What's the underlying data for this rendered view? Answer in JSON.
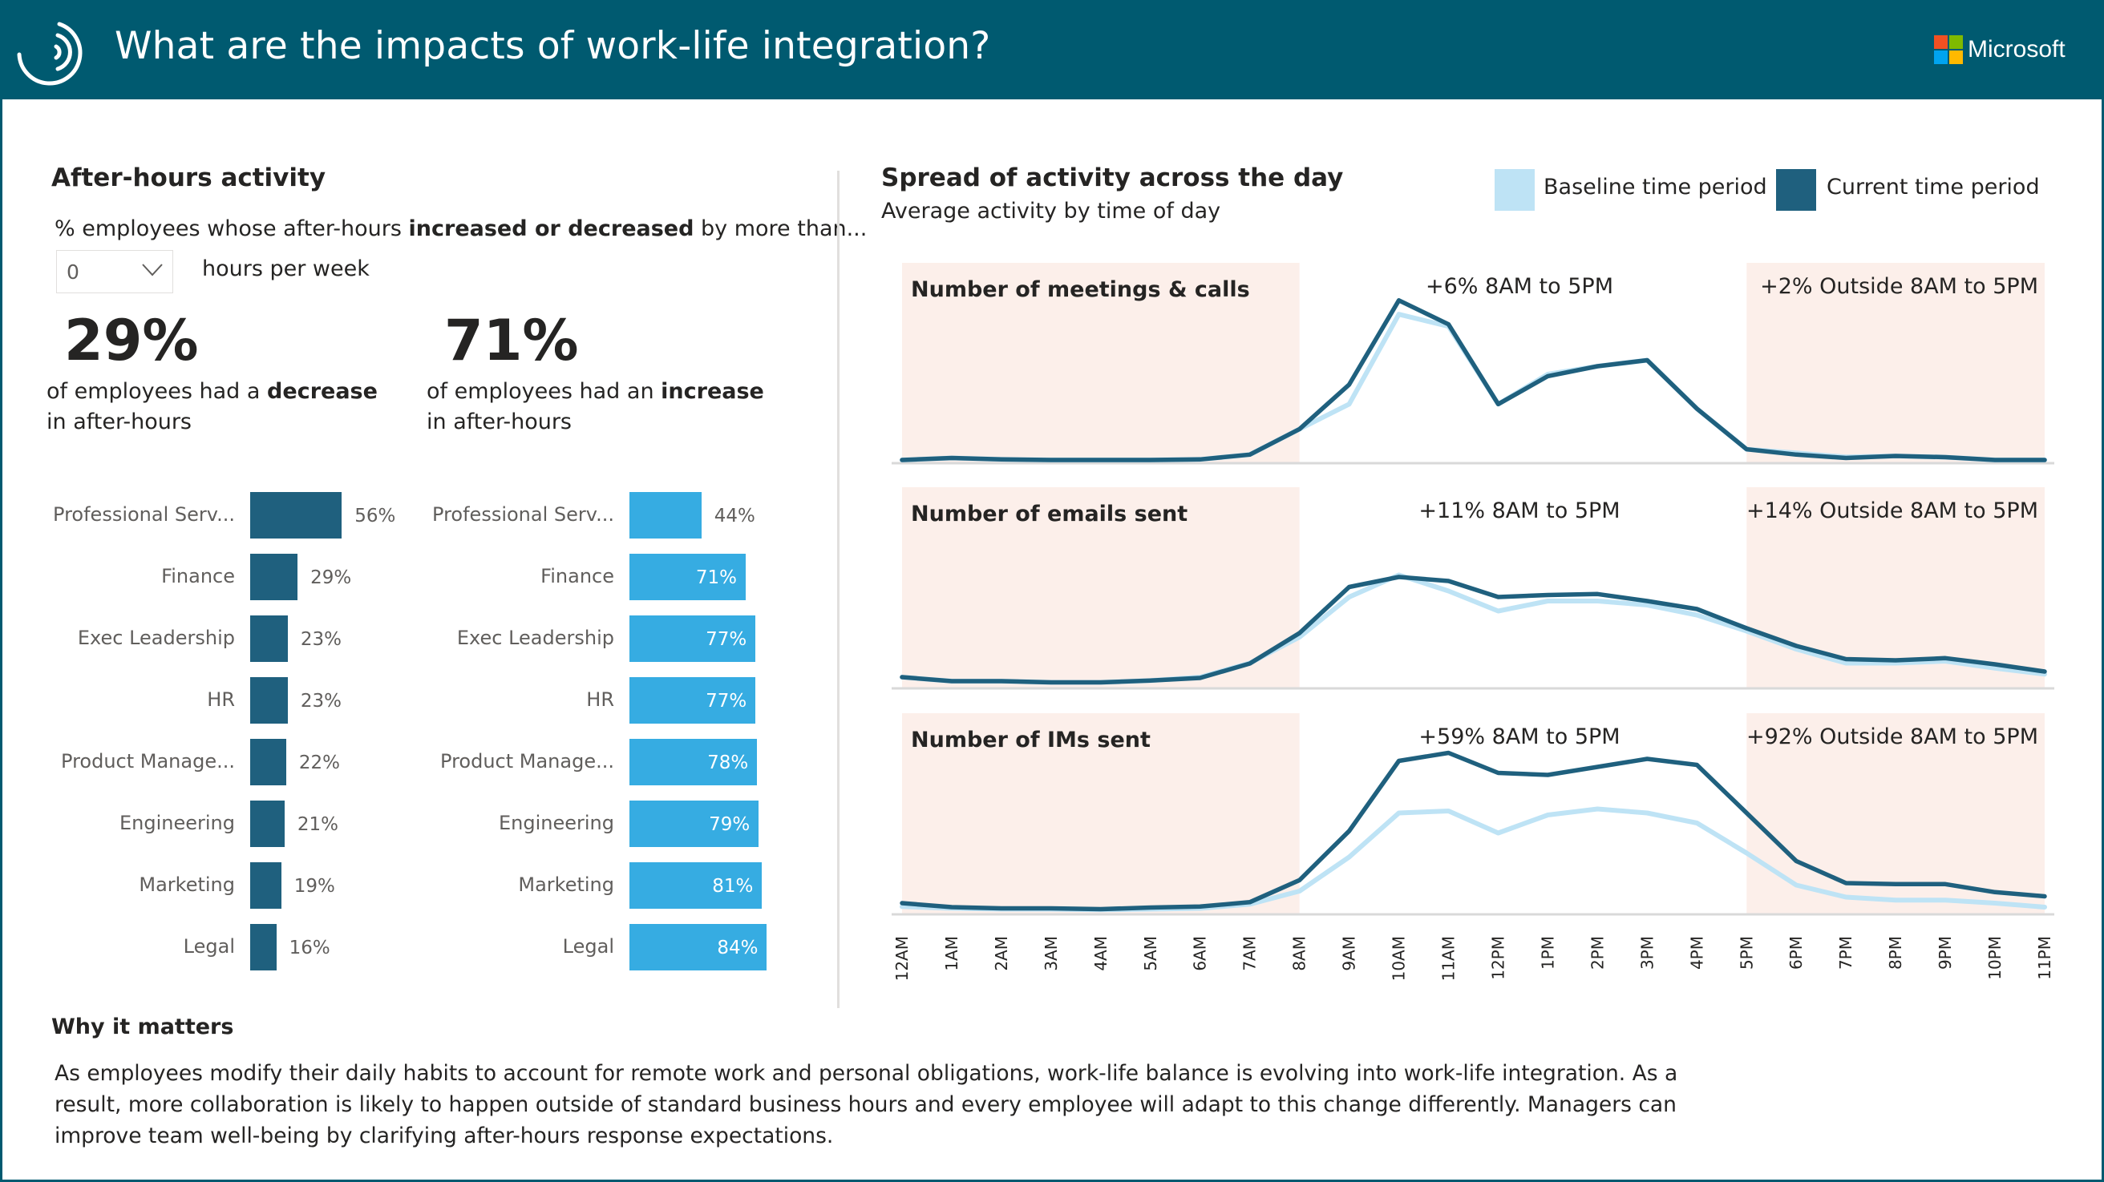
{
  "header": {
    "title": "What are the impacts of work-life integration?",
    "logo_icon": "viva-insights-arcs-icon",
    "brand": "Microsoft",
    "brand_colors": [
      "#f25022",
      "#7fba00",
      "#00a4ef",
      "#ffb900"
    ],
    "background": "#005a70"
  },
  "after_hours": {
    "title": "After-hours activity",
    "desc_prefix": "% employees whose after-hours ",
    "desc_bold": "increased or decreased",
    "desc_suffix": " by more than...",
    "dropdown": {
      "value": "0",
      "icon": "chevron-down-icon"
    },
    "dropdown_unit": "hours per week",
    "decrease": {
      "value": "29%",
      "caption_prefix": "of employees had a ",
      "caption_bold": "decrease",
      "caption_line2": "in after-hours"
    },
    "increase": {
      "value": "71%",
      "caption_prefix": "of employees had an ",
      "caption_bold": "increase",
      "caption_line2": "in after-hours"
    }
  },
  "spread": {
    "title": "Spread of activity across the day",
    "subtitle": "Average activity by time of day",
    "legend": [
      {
        "label": "Baseline time period",
        "color": "#bee3f5"
      },
      {
        "label": "Current time period",
        "color": "#1f607e"
      }
    ]
  },
  "why": {
    "title": "Why it matters",
    "body": "As employees modify their daily habits to account for remote work and personal obligations, work-life balance is evolving into work-life integration. As a result, more collaboration is likely to happen outside of standard business hours and every employee will adapt to this change differently. Managers can improve team well-being by clarifying after-hours response expectations."
  },
  "colors": {
    "decrease_bar": "#1f607e",
    "increase_bar": "#36ace2",
    "shade": "#fcefea",
    "baseline_line": "#bee3f5",
    "current_line": "#1f607e"
  },
  "chart_data": [
    {
      "type": "bar",
      "title": "Employees with a decrease in after-hours, by function",
      "orientation": "horizontal",
      "categories": [
        "Professional Serv...",
        "Finance",
        "Exec Leadership",
        "HR",
        "Product Manage...",
        "Engineering",
        "Marketing",
        "Legal"
      ],
      "values": [
        56,
        29,
        23,
        23,
        22,
        21,
        19,
        16
      ],
      "labels": [
        "56%",
        "29%",
        "23%",
        "23%",
        "22%",
        "21%",
        "19%",
        "16%"
      ],
      "unit": "%",
      "xlim": [
        0,
        100
      ]
    },
    {
      "type": "bar",
      "title": "Employees with an increase in after-hours, by function",
      "orientation": "horizontal",
      "categories": [
        "Professional Serv...",
        "Finance",
        "Exec Leadership",
        "HR",
        "Product Manage...",
        "Engineering",
        "Marketing",
        "Legal"
      ],
      "values": [
        44,
        71,
        77,
        77,
        78,
        79,
        81,
        84
      ],
      "labels": [
        "44%",
        "71%",
        "77%",
        "77%",
        "78%",
        "79%",
        "81%",
        "84%"
      ],
      "unit": "%",
      "xlim": [
        0,
        100
      ]
    },
    {
      "type": "line",
      "title": "Number of meetings & calls",
      "annotation_inside": "+6% 8AM to 5PM",
      "annotation_outside": "+2% Outside 8AM to 5PM",
      "shaded_ranges": [
        [
          "12AM",
          "8AM"
        ],
        [
          "5PM",
          "11PM"
        ]
      ],
      "x": [
        "12AM",
        "1AM",
        "2AM",
        "3AM",
        "4AM",
        "5AM",
        "6AM",
        "7AM",
        "8AM",
        "9AM",
        "10AM",
        "11AM",
        "12PM",
        "1PM",
        "2PM",
        "3PM",
        "4PM",
        "5PM",
        "6PM",
        "7PM",
        "8PM",
        "9PM",
        "10PM",
        "11PM"
      ],
      "series": [
        {
          "name": "Baseline time period",
          "values": [
            0,
            1,
            0.3,
            0,
            0,
            0,
            0.3,
            2.7,
            15.5,
            28,
            73,
            67,
            28,
            43,
            47,
            50,
            25.7,
            5.4,
            3.5,
            1.5,
            2,
            1.4,
            0,
            0
          ]
        },
        {
          "name": "Current time period",
          "values": [
            0,
            1,
            0.3,
            0,
            0,
            0,
            0.3,
            2.7,
            15.5,
            37.8,
            80,
            68,
            28,
            42,
            47,
            50,
            25.7,
            5.4,
            2.7,
            1,
            2,
            1.4,
            0,
            0
          ]
        }
      ],
      "ylim": [
        0,
        100
      ],
      "xlabel": "",
      "ylabel": ""
    },
    {
      "type": "line",
      "title": "Number of emails sent",
      "annotation_inside": "+11% 8AM to 5PM",
      "annotation_outside": "+14% Outside 8AM to 5PM",
      "shaded_ranges": [
        [
          "12AM",
          "8AM"
        ],
        [
          "5PM",
          "11PM"
        ]
      ],
      "x": [
        "12AM",
        "1AM",
        "2AM",
        "3AM",
        "4AM",
        "5AM",
        "6AM",
        "7AM",
        "8AM",
        "9AM",
        "10AM",
        "11AM",
        "12PM",
        "1PM",
        "2PM",
        "3PM",
        "4PM",
        "5PM",
        "6PM",
        "7PM",
        "8PM",
        "9PM",
        "10PM",
        "11PM"
      ],
      "series": [
        {
          "name": "Baseline time period",
          "values": [
            4,
            2,
            2,
            1.4,
            1.4,
            2.3,
            4,
            11,
            24,
            44,
            55,
            47,
            37,
            42,
            42,
            40,
            35,
            27,
            18,
            11,
            11,
            12,
            8.5,
            5.5
          ]
        },
        {
          "name": "Current time period",
          "values": [
            4,
            2,
            2,
            1.4,
            1.4,
            2.3,
            3.6,
            10.8,
            26,
            49,
            54,
            52,
            44,
            45,
            45.5,
            42,
            38,
            28.4,
            19.6,
            13,
            12.4,
            13.5,
            10.4,
            6.8
          ]
        }
      ],
      "ylim": [
        0,
        100
      ],
      "xlabel": "",
      "ylabel": ""
    },
    {
      "type": "line",
      "title": "Number of IMs sent",
      "annotation_inside": "+59% 8AM to 5PM",
      "annotation_outside": "+92% Outside 8AM to 5PM",
      "shaded_ranges": [
        [
          "12AM",
          "8AM"
        ],
        [
          "5PM",
          "11PM"
        ]
      ],
      "x": [
        "12AM",
        "1AM",
        "2AM",
        "3AM",
        "4AM",
        "5AM",
        "6AM",
        "7AM",
        "8AM",
        "9AM",
        "10AM",
        "11AM",
        "12PM",
        "1PM",
        "2PM",
        "3PM",
        "4PM",
        "5PM",
        "6PM",
        "7PM",
        "8PM",
        "9PM",
        "10PM",
        "11PM"
      ],
      "series": [
        {
          "name": "Baseline time period",
          "values": [
            2.3,
            1.4,
            1,
            1,
            0.7,
            1,
            1.4,
            3.5,
            10,
            27,
            49,
            50,
            39,
            48,
            51,
            49,
            44,
            29,
            13,
            7,
            5.5,
            5.5,
            4,
            2
          ]
        },
        {
          "name": "Current time period",
          "values": [
            4,
            2,
            1.4,
            1.4,
            1,
            1.8,
            2.3,
            4.5,
            15.5,
            40,
            75,
            79,
            69,
            68,
            72,
            76,
            73,
            49,
            25,
            14,
            13.5,
            13.5,
            9.5,
            7.4
          ]
        }
      ],
      "ylim": [
        0,
        100
      ],
      "xlabel": "",
      "ylabel": ""
    }
  ]
}
